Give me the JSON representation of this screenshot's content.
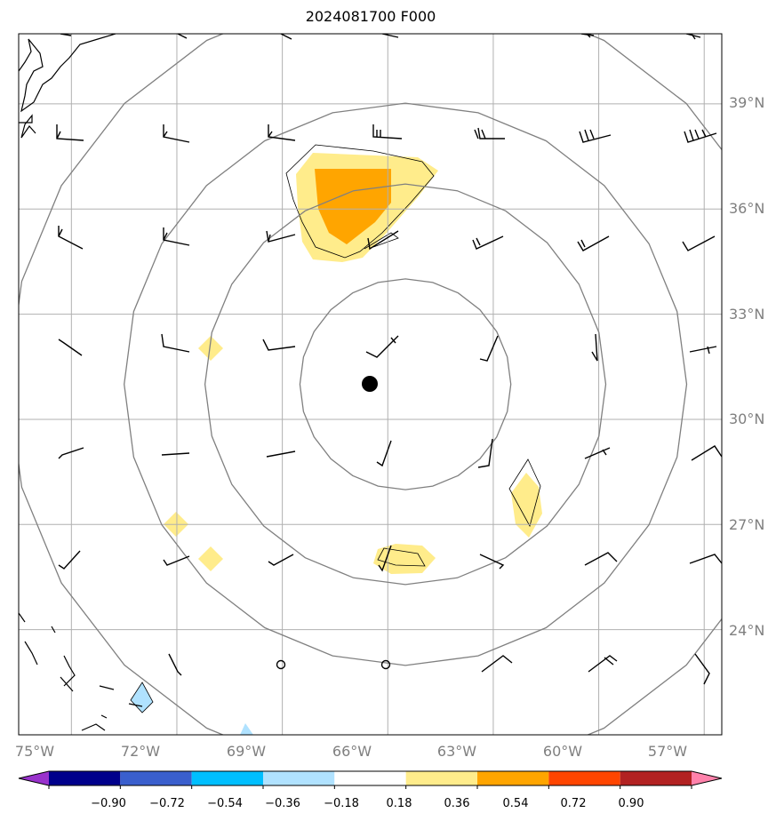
{
  "title": "2024081700 F000",
  "map": {
    "lon_range": [
      -76.5,
      -56.5
    ],
    "lat_range": [
      21.0,
      41.0
    ],
    "longitudes": [
      -75,
      -72,
      -69,
      -66,
      -63,
      -60,
      -57
    ],
    "latitudes": [
      24,
      27,
      30,
      33,
      36,
      39
    ],
    "lon_labels": [
      "75°W",
      "72°W",
      "69°W",
      "66°W",
      "63°W",
      "60°W",
      "57°W"
    ],
    "lat_labels": [
      "24°N",
      "27°N",
      "30°N",
      "33°N",
      "36°N",
      "39°N"
    ],
    "center": {
      "lon": -65.5,
      "lat": 31.0
    },
    "range_rings_deg": [
      3.0,
      5.7,
      8.0,
      11.3
    ]
  },
  "colorbar": {
    "ticks": [
      "−0.90",
      "−0.72",
      "−0.54",
      "−0.36",
      "−0.18",
      "0.18",
      "0.36",
      "0.54",
      "0.72",
      "0.90"
    ],
    "colors": [
      "#9932cc",
      "#00008b",
      "#3a5fcd",
      "#00bfff",
      "#b0e2ff",
      "#ffffff",
      "#ffec8b",
      "#ffa500",
      "#ff4500",
      "#b22222",
      "#ff82ab"
    ]
  },
  "colors": {
    "grid": "#b0b0b0",
    "ring": "#808080",
    "coast": "#000000"
  }
}
